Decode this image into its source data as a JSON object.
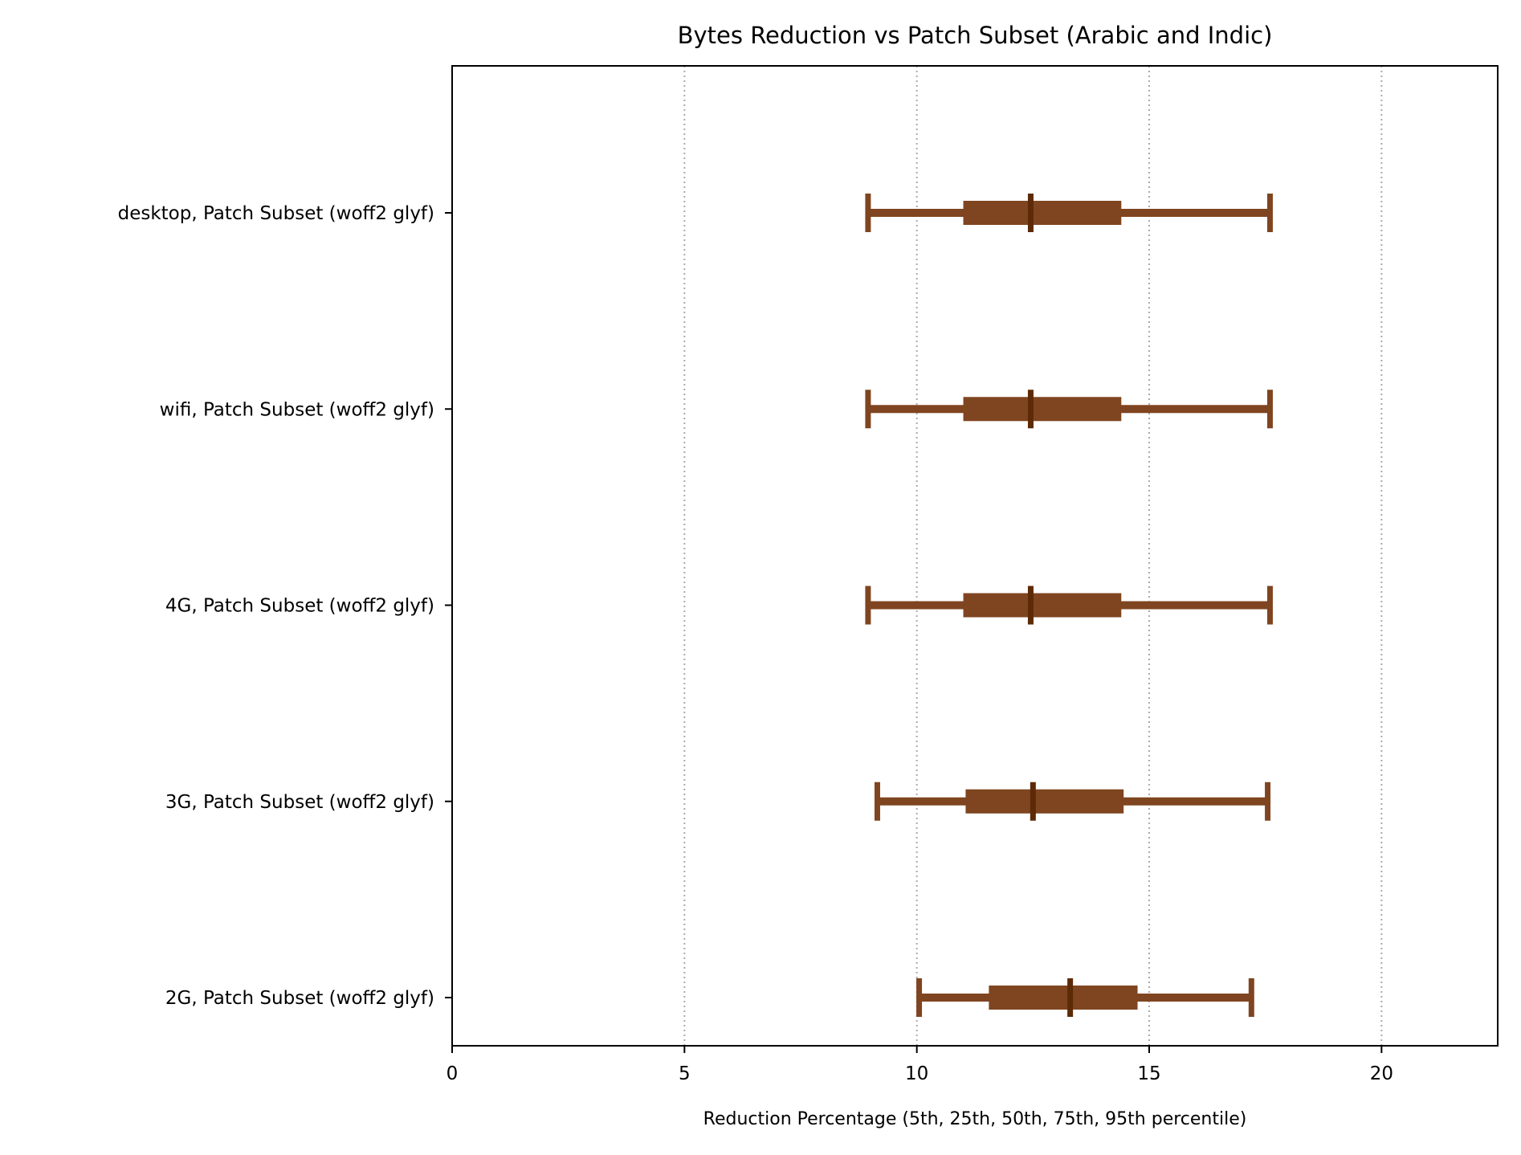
{
  "chart_data": {
    "type": "box",
    "title": "Bytes Reduction vs Patch Subset (Arabic and Indic)",
    "xlabel": "Reduction Percentage  (5th, 25th, 50th, 75th, 95th percentile)",
    "ylabel": "",
    "xlim": [
      0,
      22.5
    ],
    "xticks": [
      0,
      5,
      10,
      15,
      20
    ],
    "grid": "x-dotted",
    "orientation": "horizontal",
    "color": "#7f4520",
    "median_color": "#5c2a06",
    "grid_color": "#aaaaaa",
    "categories": [
      "desktop, Patch Subset (woff2 glyf)",
      "wifi, Patch Subset (woff2 glyf)",
      "4G, Patch Subset (woff2 glyf)",
      "3G, Patch Subset (woff2 glyf)",
      "2G, Patch Subset (woff2 glyf)"
    ],
    "series": [
      {
        "p5": 8.95,
        "p25": 11.0,
        "p50": 12.45,
        "p75": 14.4,
        "p95": 17.6
      },
      {
        "p5": 8.95,
        "p25": 11.0,
        "p50": 12.45,
        "p75": 14.4,
        "p95": 17.6
      },
      {
        "p5": 8.95,
        "p25": 11.0,
        "p50": 12.45,
        "p75": 14.4,
        "p95": 17.6
      },
      {
        "p5": 9.15,
        "p25": 11.05,
        "p50": 12.5,
        "p75": 14.45,
        "p95": 17.55
      },
      {
        "p5": 10.05,
        "p25": 11.55,
        "p50": 13.3,
        "p75": 14.75,
        "p95": 17.2
      }
    ]
  }
}
